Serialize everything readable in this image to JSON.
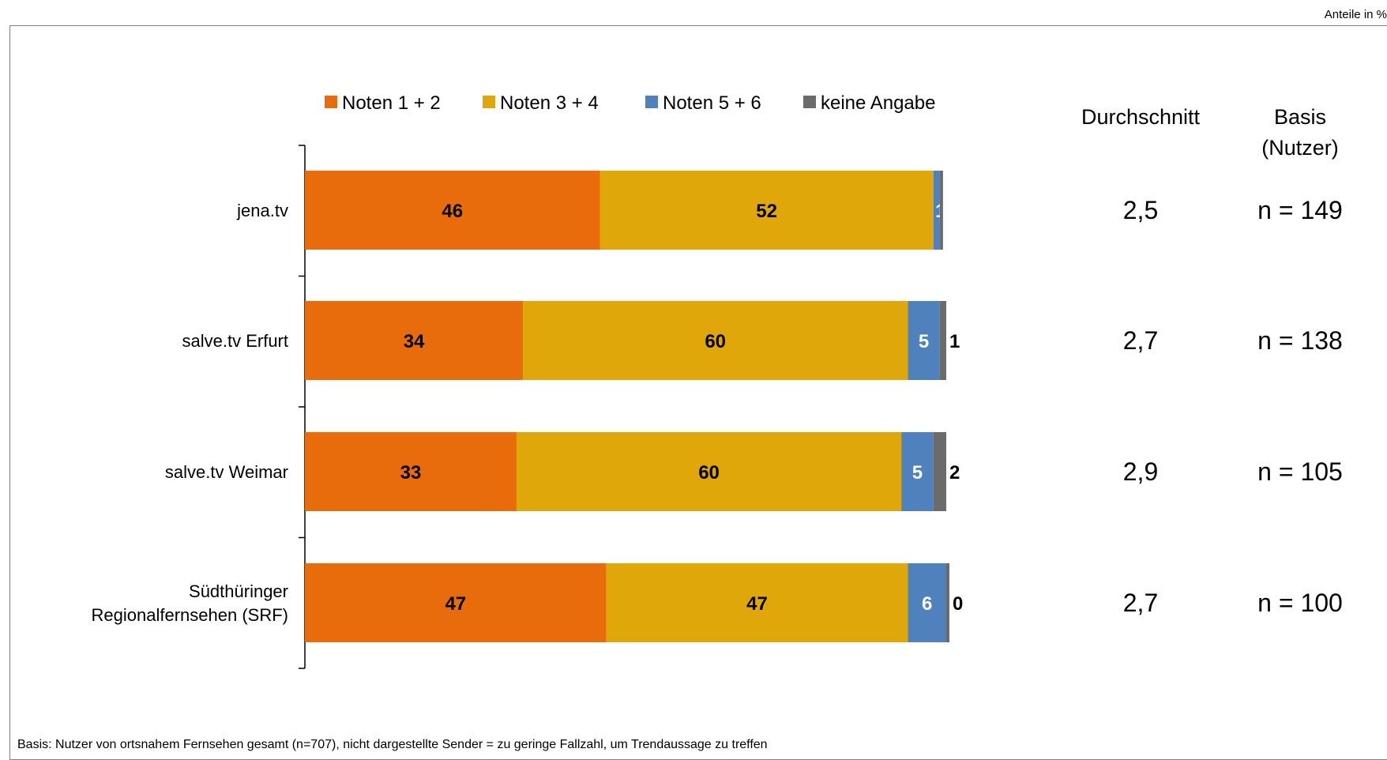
{
  "units_label": "Anteile in %",
  "footnote": "Basis: Nutzer von ortsnahem Fernsehen gesamt (n=707), nicht dargestellte Sender = zu geringe Fallzahl, um Trendaussage zu treffen",
  "columns": {
    "average_header": "Durchschnitt",
    "basis_header_line1": "Basis",
    "basis_header_line2": "(Nutzer)"
  },
  "colors": {
    "Noten 1 + 2": "#E96C0C",
    "Noten 3 + 4": "#E0A70B",
    "Noten 5 + 6": "#4F81BD",
    "keine Angabe": "#6B6B6B"
  },
  "chart_data": {
    "type": "bar",
    "orientation": "horizontal",
    "stacked": true,
    "legend_position": "top",
    "grid": false,
    "xlim": [
      0,
      100
    ],
    "categories": [
      [
        "jena.tv"
      ],
      [
        "salve.tv Erfurt"
      ],
      [
        "salve.tv Weimar"
      ],
      [
        "Südthüringer",
        "Regionalfernsehen (SRF)"
      ]
    ],
    "series": [
      {
        "name": "Noten 1 + 2",
        "values": [
          46,
          34,
          33,
          47
        ]
      },
      {
        "name": "Noten 3 + 4",
        "values": [
          52,
          60,
          60,
          47
        ]
      },
      {
        "name": "Noten 5 + 6",
        "values": [
          1,
          5,
          5,
          6
        ]
      },
      {
        "name": "keine Angabe",
        "values": [
          0,
          1,
          2,
          0
        ]
      }
    ],
    "shown_labels": [
      [
        "46",
        "52",
        "1",
        ""
      ],
      [
        "34",
        "60",
        "5",
        "1"
      ],
      [
        "33",
        "60",
        "5",
        "2"
      ],
      [
        "47",
        "47",
        "6",
        "0"
      ]
    ],
    "averages": [
      "2,5",
      "2,7",
      "2,9",
      "2,7"
    ],
    "basis": [
      "n = 149",
      "n = 138",
      "n = 105",
      "n = 100"
    ]
  }
}
